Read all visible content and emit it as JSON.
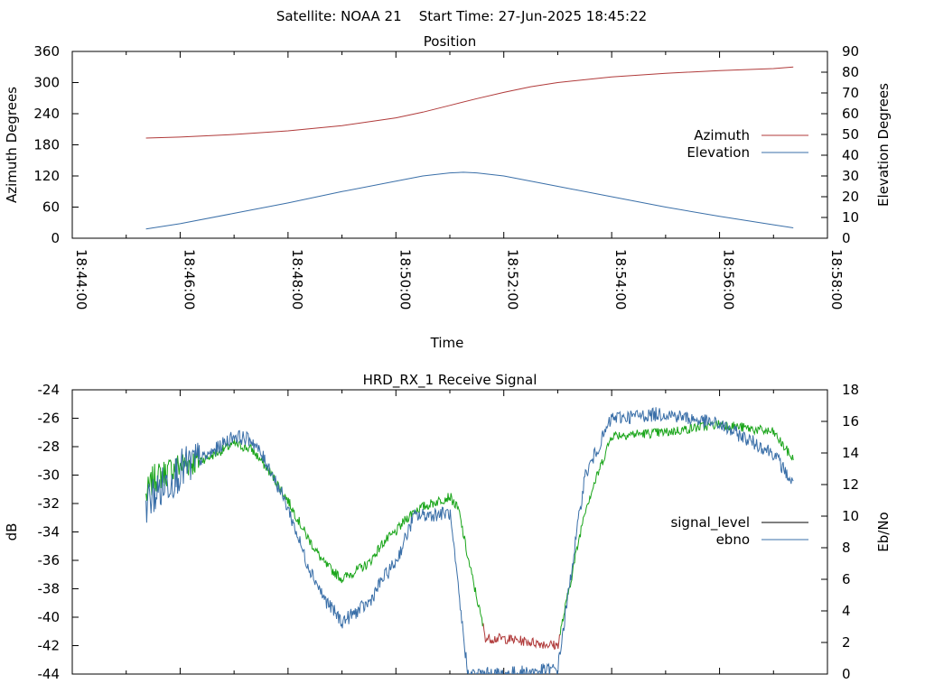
{
  "header": {
    "title": "Satellite: NOAA 21    Start Time: 27-Jun-2025 18:45:22"
  },
  "chart_data": [
    {
      "type": "line",
      "title": "Position",
      "xlabel": "Time",
      "ylabel": "Azimuth Degrees",
      "y2label": "Elevation Degrees",
      "x_ticks": [
        "18:44:00",
        "18:46:00",
        "18:48:00",
        "18:50:00",
        "18:52:00",
        "18:54:00",
        "18:56:00",
        "18:58:00"
      ],
      "xlim": [
        "18:44:00",
        "18:58:00"
      ],
      "ylim": [
        0,
        360
      ],
      "y_ticks": [
        0,
        60,
        120,
        180,
        240,
        300,
        360
      ],
      "y2lim": [
        0,
        90
      ],
      "y2_ticks": [
        0,
        10,
        20,
        30,
        40,
        50,
        60,
        70,
        80,
        90
      ],
      "grid": false,
      "legend": "right",
      "series": [
        {
          "name": "Azimuth",
          "axis": "y",
          "color": "#b03a3a",
          "x": [
            "18:45:22",
            "18:46:00",
            "18:47:00",
            "18:48:00",
            "18:49:00",
            "18:50:00",
            "18:50:30",
            "18:51:00",
            "18:51:30",
            "18:52:00",
            "18:52:30",
            "18:53:00",
            "18:54:00",
            "18:55:00",
            "18:56:00",
            "18:57:00",
            "18:57:22"
          ],
          "y": [
            193,
            195,
            200,
            207,
            217,
            232,
            243,
            256,
            269,
            281,
            292,
            300,
            311,
            318,
            323,
            327,
            330
          ]
        },
        {
          "name": "Elevation",
          "axis": "y2",
          "color": "#3a6fa8",
          "x": [
            "18:45:22",
            "18:46:00",
            "18:47:00",
            "18:48:00",
            "18:49:00",
            "18:50:00",
            "18:50:30",
            "18:51:00",
            "18:51:15",
            "18:51:30",
            "18:52:00",
            "18:53:00",
            "18:54:00",
            "18:55:00",
            "18:56:00",
            "18:57:00",
            "18:57:22"
          ],
          "y": [
            4.5,
            7,
            12,
            17,
            22.5,
            27.5,
            30,
            31.5,
            31.8,
            31.5,
            30,
            25,
            20,
            15,
            10.5,
            6.5,
            5
          ]
        }
      ]
    },
    {
      "type": "line",
      "title": "HRD_RX_1 Receive Signal",
      "xlabel": "",
      "ylabel": "dB",
      "y2label": "Eb/No",
      "xlim": [
        "18:44:00",
        "18:58:00"
      ],
      "ylim": [
        -44,
        -24
      ],
      "y_ticks": [
        -24,
        -26,
        -28,
        -30,
        -32,
        -34,
        -36,
        -38,
        -40,
        -42,
        -44
      ],
      "y2lim": [
        0,
        18
      ],
      "y2_ticks": [
        0,
        2,
        4,
        6,
        8,
        10,
        12,
        14,
        16,
        18
      ],
      "grid": false,
      "legend": "right",
      "series": [
        {
          "name": "signal_level",
          "axis": "y",
          "color": "#000000",
          "segment_colors": [
            "#1aa51a",
            "#b03a3a"
          ],
          "x": [
            "18:45:22",
            "18:45:30",
            "18:46:00",
            "18:46:30",
            "18:47:00",
            "18:47:20",
            "18:47:40",
            "18:48:00",
            "18:48:20",
            "18:48:40",
            "18:49:00",
            "18:49:30",
            "18:49:45",
            "18:50:00",
            "18:50:10",
            "18:50:20",
            "18:51:00",
            "18:51:10",
            "18:51:20",
            "18:51:40",
            "18:52:00",
            "18:53:00",
            "18:53:30",
            "18:54:00",
            "18:55:00",
            "18:56:00",
            "18:57:00",
            "18:57:22"
          ],
          "y": [
            -31.5,
            -30.3,
            -29.3,
            -28.8,
            -27.8,
            -28.2,
            -29.8,
            -31.8,
            -34.2,
            -36.2,
            -37.3,
            -36.2,
            -34.8,
            -34.0,
            -33.2,
            -32.5,
            -31.5,
            -32.5,
            -35.8,
            -41.5,
            -41.5,
            -42.0,
            -32.5,
            -27.2,
            -27.0,
            -26.4,
            -27.0,
            -28.9
          ]
        },
        {
          "name": "ebno",
          "axis": "y2",
          "color": "#3a6fa8",
          "x": [
            "18:45:22",
            "18:45:30",
            "18:46:00",
            "18:46:30",
            "18:47:00",
            "18:47:20",
            "18:47:40",
            "18:48:00",
            "18:48:20",
            "18:48:40",
            "18:49:00",
            "18:49:30",
            "18:49:45",
            "18:50:00",
            "18:50:10",
            "18:50:20",
            "18:51:00",
            "18:51:10",
            "18:51:20",
            "18:51:40",
            "18:52:00",
            "18:53:00",
            "18:53:30",
            "18:54:00",
            "18:55:00",
            "18:56:00",
            "18:57:00",
            "18:57:22"
          ],
          "y": [
            10.8,
            11.3,
            12.9,
            13.8,
            15.1,
            14.8,
            13.0,
            10.5,
            7.2,
            4.8,
            3.3,
            4.5,
            6.0,
            7.1,
            8.5,
            10.0,
            10.2,
            5.0,
            0,
            0,
            0,
            0.3,
            12.5,
            16.2,
            16.5,
            15.8,
            14.0,
            12.0
          ]
        }
      ]
    }
  ]
}
